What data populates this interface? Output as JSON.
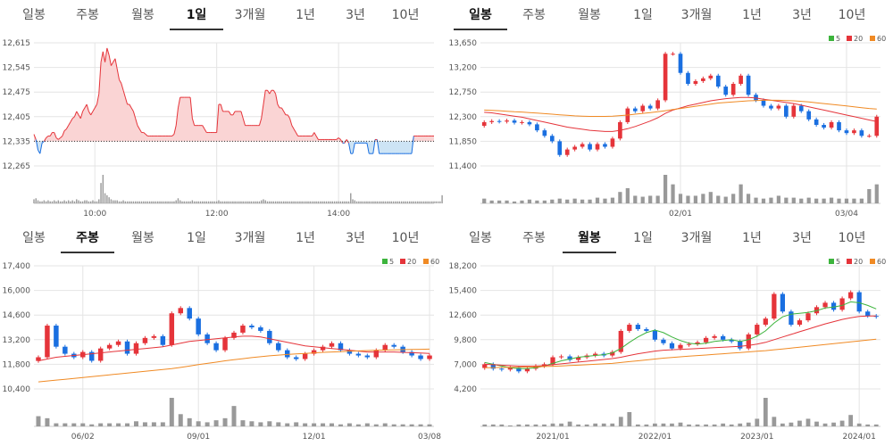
{
  "colors": {
    "up": "#e5343a",
    "down": "#1a6fe0",
    "ma5": "#3cb43c",
    "ma20": "#e5343a",
    "ma60": "#f08a24",
    "volume": "#999999",
    "area_up": "#fad4d4",
    "area_down": "#cde4f5",
    "grid": "#e4e4e4"
  },
  "panels": [
    {
      "tabs": [
        "일봉",
        "주봉",
        "월봉",
        "1일",
        "3개월",
        "1년",
        "3년",
        "10년"
      ],
      "active": 3
    },
    {
      "tabs": [
        "일봉",
        "주봉",
        "월봉",
        "1일",
        "3개월",
        "1년",
        "3년",
        "10년"
      ],
      "active": 0
    },
    {
      "tabs": [
        "일봉",
        "주봉",
        "월봉",
        "1일",
        "3개월",
        "1년",
        "3년",
        "10년"
      ],
      "active": 1
    },
    {
      "tabs": [
        "일봉",
        "주봉",
        "월봉",
        "1일",
        "3개월",
        "1년",
        "3년",
        "10년"
      ],
      "active": 2
    }
  ],
  "legend": [
    "5",
    "20",
    "60"
  ],
  "chart_data": [
    {
      "type": "area",
      "period": "1일",
      "y_ticks": [
        "12,615",
        "12,545",
        "12,475",
        "12,405",
        "12,335",
        "12,265"
      ],
      "y_tick_values": [
        12615,
        12545,
        12475,
        12405,
        12335,
        12265
      ],
      "ylim": [
        12265,
        12615
      ],
      "baseline": 12335,
      "x_ticks": [
        "10:00",
        "12:00",
        "14:00"
      ],
      "x_tick_index": [
        30,
        90,
        150
      ],
      "n": 200,
      "x_first": "09:00",
      "x_last": "15:30",
      "price": [
        12355,
        12340,
        12310,
        12300,
        12330,
        12335,
        12345,
        12350,
        12350,
        12360,
        12360,
        12345,
        12340,
        12345,
        12350,
        12365,
        12370,
        12380,
        12390,
        12400,
        12405,
        12420,
        12410,
        12400,
        12420,
        12430,
        12440,
        12420,
        12410,
        12420,
        12430,
        12440,
        12470,
        12560,
        12590,
        12560,
        12600,
        12580,
        12550,
        12560,
        12570,
        12540,
        12510,
        12500,
        12480,
        12460,
        12440,
        12440,
        12430,
        12420,
        12400,
        12380,
        12370,
        12360,
        12360,
        12355,
        12350,
        12350,
        12350,
        12350,
        12350,
        12350,
        12350,
        12350,
        12350,
        12350,
        12350,
        12350,
        12350,
        12355,
        12380,
        12430,
        12460,
        12460,
        12460,
        12460,
        12460,
        12460,
        12400,
        12380,
        12380,
        12380,
        12380,
        12380,
        12370,
        12360,
        12360,
        12360,
        12360,
        12360,
        12360,
        12440,
        12440,
        12420,
        12420,
        12420,
        12420,
        12410,
        12410,
        12420,
        12420,
        12420,
        12420,
        12400,
        12380,
        12380,
        12380,
        12380,
        12380,
        12380,
        12380,
        12380,
        12400,
        12440,
        12480,
        12480,
        12470,
        12480,
        12480,
        12470,
        12440,
        12430,
        12430,
        12420,
        12410,
        12410,
        12400,
        12380,
        12370,
        12360,
        12350,
        12350,
        12350,
        12350,
        12350,
        12350,
        12350,
        12350,
        12360,
        12350,
        12340,
        12340,
        12340,
        12340,
        12340,
        12340,
        12340,
        12340,
        12340,
        12340,
        12345,
        12340,
        12330,
        12330,
        12340,
        12330,
        12300,
        12300,
        12330,
        12330,
        12330,
        12330,
        12330,
        12330,
        12330,
        12300,
        12300,
        12300,
        12340,
        12340,
        12300,
        12300,
        12300,
        12300,
        12300,
        12300,
        12300,
        12300,
        12300,
        12300,
        12300,
        12300,
        12300,
        12300,
        12300,
        12300,
        12300,
        12350,
        12350,
        12350,
        12350,
        12350,
        12350,
        12350,
        12350,
        12350,
        12350,
        12350
      ],
      "volume": [
        4,
        5,
        3,
        2,
        2,
        3,
        2,
        3,
        2,
        2,
        3,
        2,
        3,
        2,
        2,
        3,
        2,
        3,
        2,
        3,
        2,
        4,
        3,
        2,
        2,
        3,
        3,
        2,
        2,
        3,
        2,
        2,
        4,
        20,
        28,
        10,
        8,
        6,
        4,
        3,
        3,
        3,
        2,
        2,
        3,
        2,
        2,
        2,
        2,
        2,
        2,
        2,
        2,
        2,
        2,
        2,
        2,
        2,
        2,
        2,
        2,
        2,
        2,
        2,
        2,
        2,
        2,
        2,
        2,
        2,
        3,
        5,
        3,
        2,
        2,
        2,
        2,
        2,
        3,
        2,
        2,
        2,
        2,
        2,
        2,
        2,
        2,
        2,
        2,
        2,
        2,
        3,
        2,
        2,
        2,
        2,
        2,
        2,
        2,
        2,
        2,
        2,
        2,
        2,
        2,
        2,
        2,
        2,
        2,
        2,
        2,
        2,
        3,
        4,
        3,
        2,
        2,
        2,
        2,
        2,
        2,
        2,
        2,
        2,
        2,
        2,
        2,
        2,
        2,
        2,
        2,
        2,
        2,
        2,
        2,
        2,
        2,
        2,
        2,
        2,
        2,
        2,
        2,
        2,
        2,
        2,
        2,
        2,
        2,
        2,
        2,
        2,
        2,
        2,
        2,
        2,
        10,
        4,
        3,
        2,
        2,
        2,
        2,
        2,
        2,
        2,
        2,
        2,
        2,
        2,
        2,
        2,
        2,
        2,
        2,
        2,
        2,
        2,
        2,
        2,
        2,
        2,
        2,
        2,
        2,
        2,
        2,
        2,
        2,
        2,
        2,
        2,
        2,
        2,
        2,
        2,
        2,
        2,
        2,
        2,
        2,
        8
      ]
    },
    {
      "type": "candlestick",
      "period": "일봉",
      "y_ticks": [
        "13,650",
        "13,200",
        "12,750",
        "12,300",
        "11,850",
        "11,400"
      ],
      "y_tick_values": [
        13650,
        13200,
        12750,
        12300,
        11850,
        11400
      ],
      "ylim": [
        11400,
        13650
      ],
      "x_ticks": [
        "02/01",
        "03/04"
      ],
      "x_tick_index": [
        26,
        48
      ],
      "close": [
        12200,
        12220,
        12210,
        12230,
        12190,
        12200,
        12160,
        12050,
        11950,
        11850,
        11600,
        11700,
        11750,
        11800,
        11700,
        11800,
        11750,
        11900,
        12200,
        12450,
        12400,
        12500,
        12450,
        12600,
        13450,
        13450,
        13100,
        12900,
        12950,
        13000,
        13050,
        12850,
        12700,
        12900,
        13050,
        12700,
        12600,
        12500,
        12450,
        12500,
        12300,
        12500,
        12400,
        12250,
        12150,
        12100,
        12200,
        12050,
        12000,
        12050,
        11950,
        11950,
        12300
      ],
      "ma20": [
        12380,
        12370,
        12350,
        12330,
        12310,
        12290,
        12260,
        12230,
        12200,
        12170,
        12140,
        12110,
        12090,
        12070,
        12050,
        12040,
        12030,
        12030,
        12050,
        12080,
        12120,
        12170,
        12220,
        12280,
        12360,
        12420,
        12460,
        12500,
        12530,
        12560,
        12590,
        12610,
        12630,
        12640,
        12650,
        12650,
        12640,
        12620,
        12600,
        12580,
        12560,
        12540,
        12510,
        12480,
        12450,
        12420,
        12390,
        12360,
        12330,
        12300,
        12270,
        12240,
        12210
      ],
      "ma60": [
        12420,
        12415,
        12410,
        12400,
        12390,
        12385,
        12375,
        12365,
        12355,
        12345,
        12335,
        12325,
        12315,
        12310,
        12305,
        12305,
        12305,
        12310,
        12320,
        12330,
        12345,
        12360,
        12375,
        12390,
        12410,
        12430,
        12450,
        12470,
        12490,
        12510,
        12530,
        12550,
        12560,
        12570,
        12580,
        12590,
        12595,
        12600,
        12600,
        12600,
        12595,
        12590,
        12580,
        12570,
        12555,
        12540,
        12525,
        12510,
        12495,
        12480,
        12465,
        12450,
        12440
      ],
      "volume": [
        5,
        3,
        3,
        3,
        2,
        3,
        4,
        3,
        3,
        4,
        5,
        4,
        5,
        4,
        4,
        6,
        5,
        6,
        12,
        16,
        8,
        7,
        8,
        8,
        30,
        20,
        10,
        8,
        8,
        10,
        12,
        8,
        7,
        10,
        20,
        10,
        6,
        5,
        6,
        8,
        6,
        6,
        5,
        6,
        5,
        5,
        6,
        5,
        5,
        5,
        5,
        15,
        20
      ]
    },
    {
      "type": "candlestick",
      "period": "주봉",
      "y_ticks": [
        "17,400",
        "16,000",
        "14,600",
        "13,200",
        "11,800",
        "10,400"
      ],
      "y_tick_values": [
        17400,
        16000,
        14600,
        13200,
        11800,
        10400
      ],
      "ylim": [
        10400,
        17400
      ],
      "x_ticks": [
        "06/02",
        "09/01",
        "12/01",
        "03/08"
      ],
      "x_tick_index": [
        5,
        18,
        31,
        44
      ],
      "close": [
        12200,
        14000,
        12800,
        12400,
        12200,
        12500,
        12000,
        12700,
        12900,
        13100,
        12400,
        13000,
        13300,
        13400,
        12900,
        14700,
        15000,
        14400,
        13500,
        13000,
        12600,
        13300,
        13600,
        14000,
        13900,
        13700,
        13000,
        12600,
        12200,
        12100,
        12400,
        12600,
        12800,
        13000,
        12600,
        12400,
        12300,
        12200,
        12600,
        12900,
        12800,
        12500,
        12300,
        12100,
        12300
      ],
      "ma20": [
        12000,
        12100,
        12200,
        12250,
        12300,
        12350,
        12400,
        12450,
        12500,
        12550,
        12600,
        12650,
        12700,
        12750,
        12800,
        12900,
        13000,
        13100,
        13150,
        13200,
        13250,
        13300,
        13350,
        13400,
        13400,
        13350,
        13250,
        13150,
        13050,
        12950,
        12850,
        12800,
        12750,
        12700,
        12650,
        12600,
        12550,
        12500,
        12500,
        12500,
        12500,
        12480,
        12460,
        12440,
        12420
      ],
      "ma60": [
        10800,
        10850,
        10900,
        10950,
        11000,
        11050,
        11100,
        11150,
        11200,
        11250,
        11300,
        11350,
        11400,
        11450,
        11500,
        11550,
        11620,
        11700,
        11780,
        11850,
        11920,
        12000,
        12060,
        12120,
        12180,
        12230,
        12280,
        12320,
        12360,
        12390,
        12420,
        12450,
        12480,
        12500,
        12520,
        12540,
        12560,
        12580,
        12600,
        12610,
        12620,
        12630,
        12640,
        12650,
        12660
      ],
      "volume": [
        10,
        8,
        3,
        3,
        3,
        3,
        2,
        3,
        3,
        3,
        3,
        5,
        4,
        4,
        4,
        28,
        12,
        8,
        5,
        4,
        6,
        8,
        20,
        6,
        5,
        4,
        5,
        4,
        3,
        4,
        3,
        3,
        3,
        3,
        2,
        3,
        2,
        3,
        2,
        3,
        2,
        2,
        2,
        2,
        2
      ]
    },
    {
      "type": "candlestick",
      "period": "월봉",
      "y_ticks": [
        "18,200",
        "15,400",
        "12,600",
        "9,800",
        "7,000",
        "4,200"
      ],
      "y_tick_values": [
        18200,
        15400,
        12600,
        9800,
        7000,
        4200
      ],
      "ylim": [
        4200,
        18200
      ],
      "x_ticks": [
        "2021/01",
        "2022/01",
        "2023/01",
        "2024/01"
      ],
      "x_tick_index": [
        8,
        20,
        32,
        44
      ],
      "close": [
        7000,
        6500,
        6400,
        6600,
        6200,
        6500,
        6800,
        7000,
        7800,
        7900,
        7500,
        7800,
        8000,
        8200,
        8000,
        8400,
        10800,
        11500,
        11000,
        10800,
        9800,
        9400,
        8800,
        9200,
        9300,
        9500,
        10000,
        10200,
        9800,
        9600,
        8800,
        10400,
        11500,
        12200,
        15000,
        13000,
        11500,
        12000,
        12800,
        13500,
        14000,
        13200,
        14500,
        15200,
        13000,
        12500,
        12400
      ],
      "ma5": [
        7200,
        7000,
        6800,
        6600,
        6500,
        6500,
        6600,
        6800,
        7100,
        7400,
        7600,
        7800,
        7900,
        8000,
        8100,
        8300,
        8800,
        9500,
        10100,
        10600,
        10900,
        10600,
        10100,
        9700,
        9400,
        9300,
        9400,
        9600,
        9700,
        9800,
        9600,
        9800,
        10200,
        10800,
        11700,
        12400,
        12700,
        12800,
        12900,
        13100,
        13400,
        13500,
        13700,
        14100,
        14000,
        13700,
        13300
      ],
      "ma20": [
        7000,
        6950,
        6900,
        6850,
        6800,
        6800,
        6800,
        6850,
        6950,
        7050,
        7150,
        7250,
        7350,
        7450,
        7550,
        7650,
        7800,
        8000,
        8200,
        8350,
        8500,
        8600,
        8650,
        8700,
        8750,
        8800,
        8850,
        8900,
        8950,
        9000,
        9050,
        9150,
        9300,
        9500,
        9800,
        10100,
        10400,
        10700,
        11000,
        11300,
        11600,
        11850,
        12100,
        12300,
        12450,
        12500,
        12500
      ],
      "ma60": [
        6600,
        6620,
        6640,
        6660,
        6680,
        6700,
        6720,
        6750,
        6780,
        6820,
        6860,
        6900,
        6950,
        7000,
        7050,
        7100,
        7200,
        7300,
        7400,
        7500,
        7600,
        7700,
        7780,
        7850,
        7920,
        7990,
        8060,
        8130,
        8200,
        8270,
        8340,
        8410,
        8480,
        8550,
        8650,
        8750,
        8850,
        8950,
        9050,
        9150,
        9250,
        9350,
        9450,
        9550,
        9650,
        9750,
        9850
      ],
      "volume": [
        2,
        2,
        2,
        1,
        2,
        2,
        2,
        2,
        3,
        3,
        5,
        2,
        2,
        3,
        3,
        3,
        10,
        15,
        2,
        2,
        3,
        3,
        3,
        4,
        2,
        2,
        2,
        2,
        3,
        2,
        3,
        4,
        8,
        30,
        10,
        3,
        4,
        6,
        8,
        5,
        3,
        4,
        6,
        12,
        3,
        2,
        2
      ]
    }
  ]
}
